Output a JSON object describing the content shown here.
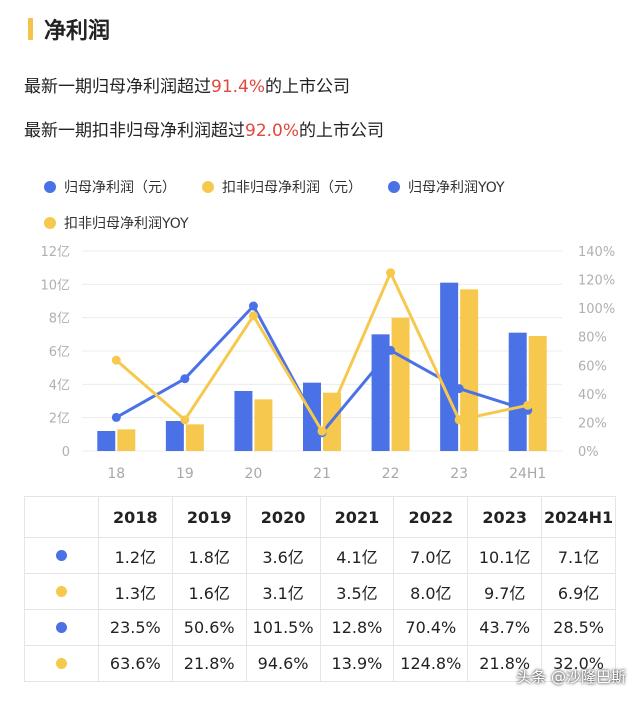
{
  "header": {
    "title": "净利润"
  },
  "summary": {
    "line1_prefix": "最新一期归母净利润超过",
    "line1_value": "91.4%",
    "line1_suffix": "的上市公司",
    "line2_prefix": "最新一期扣非归母净利润超过",
    "line2_value": "92.0%",
    "line2_suffix": "的上市公司"
  },
  "colors": {
    "blue": "#4a72e6",
    "yellow": "#f6c94e",
    "highlight": "#e0483c",
    "accent_bar": "#f4c34c"
  },
  "chart_data": {
    "type": "bar",
    "categories": [
      "18",
      "19",
      "20",
      "21",
      "22",
      "23",
      "24H1"
    ],
    "series": [
      {
        "name": "归母净利润（元）",
        "kind": "bar",
        "axis": "left",
        "color": "#4a72e6",
        "values": [
          1.2,
          1.8,
          3.6,
          4.1,
          7.0,
          10.1,
          7.1
        ]
      },
      {
        "name": "扣非归母净利润（元）",
        "kind": "bar",
        "axis": "left",
        "color": "#f6c94e",
        "values": [
          1.3,
          1.6,
          3.1,
          3.5,
          8.0,
          9.7,
          6.9
        ]
      },
      {
        "name": "归母净利润YOY",
        "kind": "line",
        "axis": "right",
        "color": "#4a72e6",
        "values": [
          23.5,
          50.6,
          101.5,
          12.8,
          70.4,
          43.7,
          28.5
        ]
      },
      {
        "name": "扣非归母净利润YOY",
        "kind": "line",
        "axis": "right",
        "color": "#f6c94e",
        "values": [
          63.6,
          21.8,
          94.6,
          13.9,
          124.8,
          21.8,
          32.0
        ]
      }
    ],
    "left_axis": {
      "ticks": [
        "0",
        "2亿",
        "4亿",
        "6亿",
        "8亿",
        "10亿",
        "12亿"
      ],
      "ylim": [
        0,
        12
      ]
    },
    "right_axis": {
      "ticks": [
        "0%",
        "20%",
        "40%",
        "60%",
        "80%",
        "100%",
        "120%",
        "140%"
      ],
      "ylim": [
        0,
        140
      ]
    },
    "grid": true,
    "legend": "top"
  },
  "table": {
    "headers": [
      "",
      "2018",
      "2019",
      "2020",
      "2021",
      "2022",
      "2023",
      "2024H1"
    ],
    "rows": [
      {
        "color": "#4a72e6",
        "cells": [
          "1.2亿",
          "1.8亿",
          "3.6亿",
          "4.1亿",
          "7.0亿",
          "10.1亿",
          "7.1亿"
        ]
      },
      {
        "color": "#f6c94e",
        "cells": [
          "1.3亿",
          "1.6亿",
          "3.1亿",
          "3.5亿",
          "8.0亿",
          "9.7亿",
          "6.9亿"
        ]
      },
      {
        "color": "#4a72e6",
        "cells": [
          "23.5%",
          "50.6%",
          "101.5%",
          "12.8%",
          "70.4%",
          "43.7%",
          "28.5%"
        ]
      },
      {
        "color": "#f6c94e",
        "cells": [
          "63.6%",
          "21.8%",
          "94.6%",
          "13.9%",
          "124.8%",
          "21.8%",
          "32.0%"
        ]
      }
    ]
  },
  "watermark": "头条 @沙隆巴斯"
}
